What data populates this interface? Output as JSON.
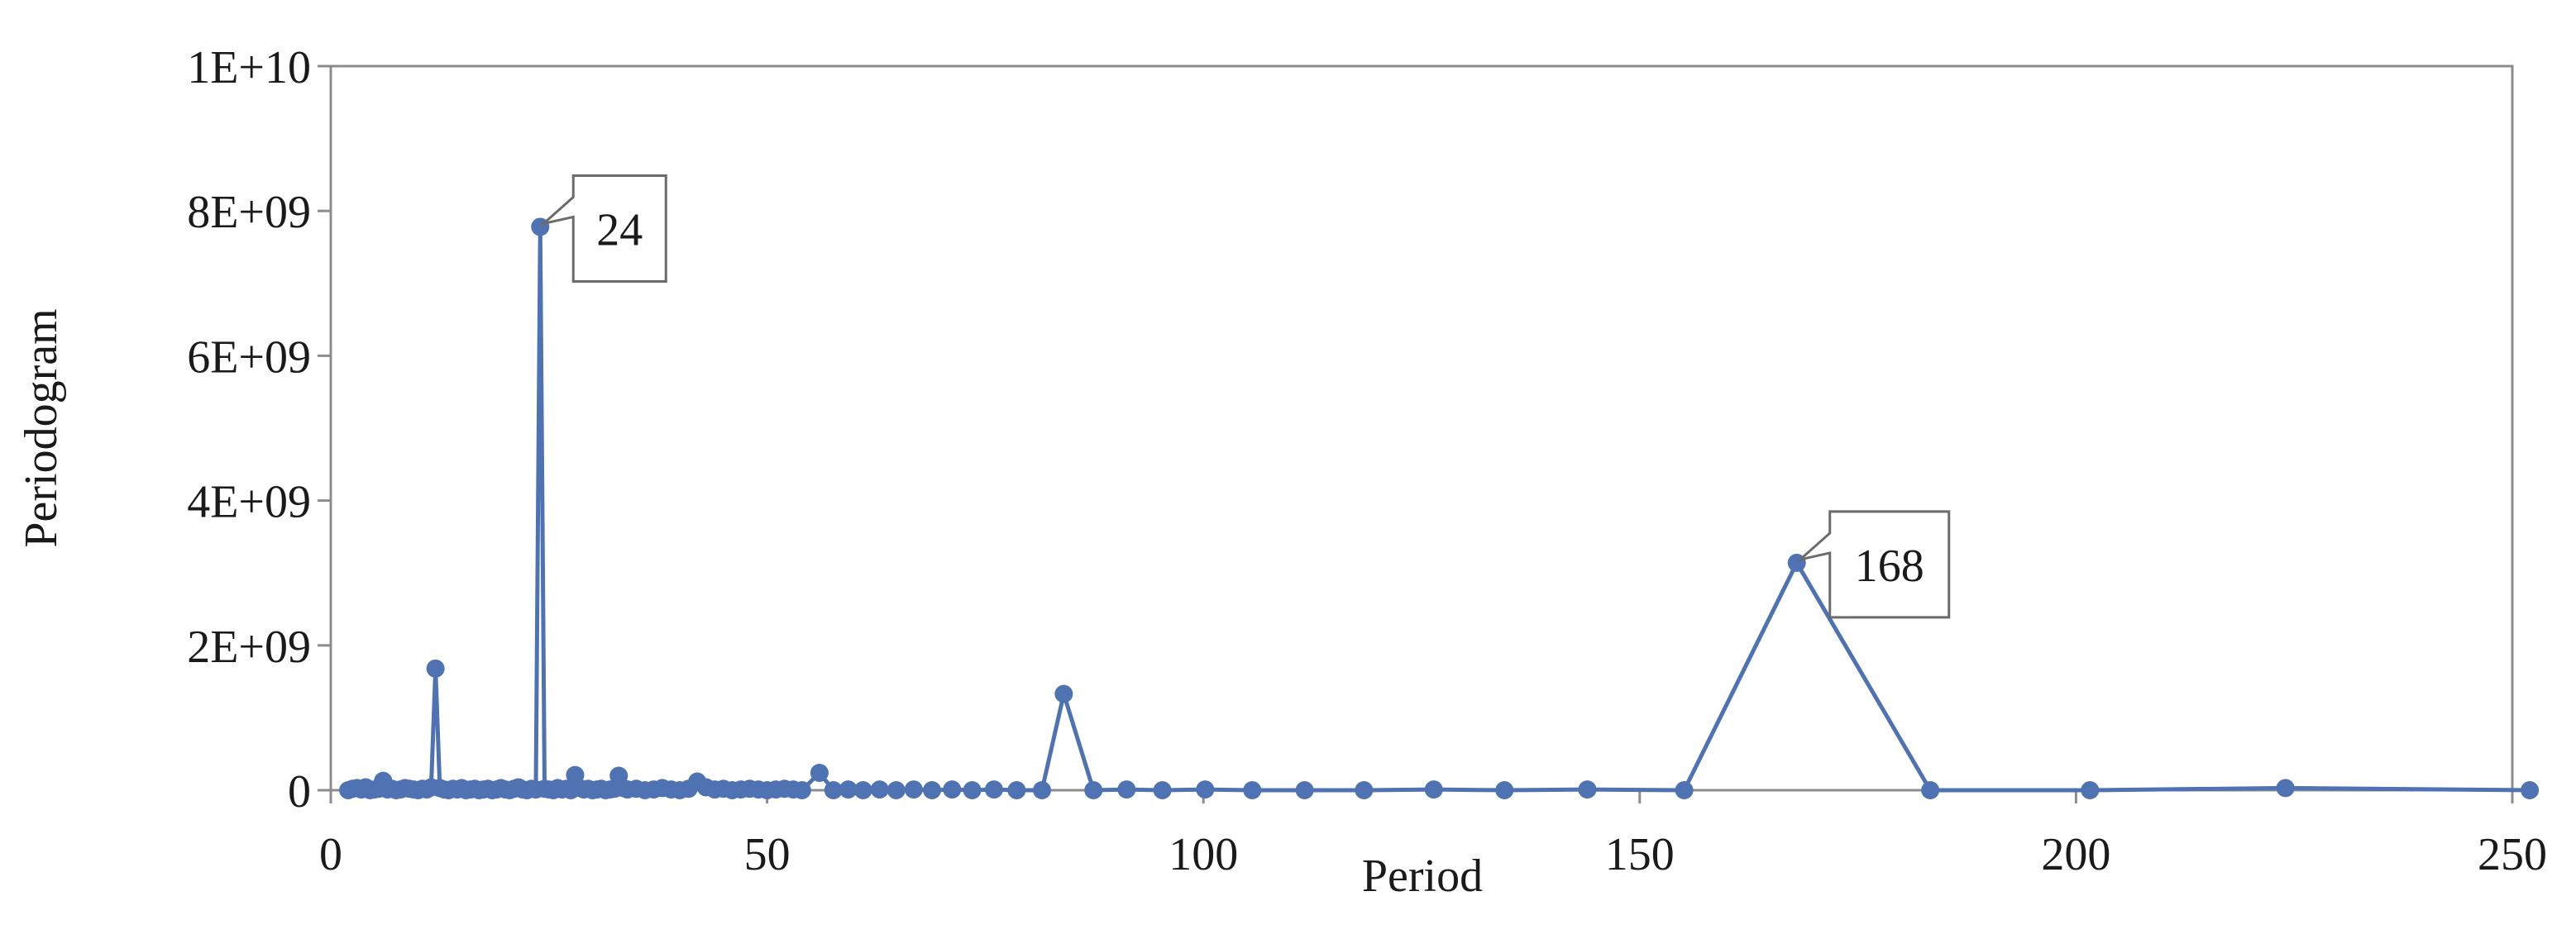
{
  "chart_data": {
    "type": "line",
    "title": "",
    "xlabel": "Period",
    "ylabel": "Periodogram",
    "xlim": [
      0,
      250
    ],
    "ylim": [
      0,
      10000000000
    ],
    "x_ticks": [
      0,
      50,
      100,
      150,
      200,
      250
    ],
    "y_ticks": [
      0,
      2000000000,
      4000000000,
      6000000000,
      8000000000,
      10000000000
    ],
    "x_tick_labels": [
      "0",
      "50",
      "100",
      "150",
      "200",
      "250"
    ],
    "y_tick_labels": [
      "0",
      "2E+09",
      "4E+09",
      "6E+09",
      "8E+09",
      "1E+10"
    ],
    "grid": false,
    "series_color": "#4f72b3",
    "series": [
      {
        "x": [
          2,
          2.5,
          3,
          3.5,
          4,
          4.5,
          5,
          5.5,
          6,
          6.5,
          7,
          7.5,
          8,
          8.5,
          9,
          9.5,
          10,
          10.5,
          11,
          11.5,
          12,
          12.5,
          13,
          13.5,
          14,
          14.5,
          15,
          15.5,
          16,
          16.5,
          17,
          17.5,
          18,
          18.5,
          19,
          19.5,
          20,
          20.5,
          21,
          21.5,
          22,
          22.5,
          23,
          23.5,
          24,
          24.5,
          25,
          25.5,
          26,
          26.5,
          27,
          27.5,
          28,
          28.5,
          29,
          29.5,
          30,
          30.5,
          31,
          31.5,
          32,
          32.5,
          33,
          33.5,
          34,
          35,
          36,
          37,
          38,
          39,
          40,
          41,
          42,
          43,
          44,
          45,
          46,
          47,
          48,
          49,
          50,
          51,
          52,
          53,
          54,
          56,
          57.6,
          59.3,
          61,
          62.9,
          64.8,
          66.8,
          68.9,
          71.2,
          73.5,
          76,
          78.6,
          81.5,
          84,
          87.4,
          91.2,
          95.3,
          100.2,
          105.6,
          111.6,
          118.4,
          126.4,
          134.5,
          144,
          155.1,
          168,
          183.3,
          201.6,
          224,
          252
        ],
        "values": [
          0,
          20000000,
          30000000,
          10000000,
          40000000,
          0,
          10000000,
          20000000,
          130000000,
          10000000,
          20000000,
          0,
          10000000,
          30000000,
          20000000,
          10000000,
          0,
          20000000,
          10000000,
          40000000,
          1680000000,
          30000000,
          10000000,
          0,
          20000000,
          10000000,
          30000000,
          0,
          10000000,
          20000000,
          0,
          10000000,
          20000000,
          0,
          10000000,
          30000000,
          10000000,
          0,
          20000000,
          40000000,
          10000000,
          0,
          20000000,
          10000000,
          7780000000,
          20000000,
          10000000,
          0,
          30000000,
          10000000,
          20000000,
          0,
          210000000,
          30000000,
          10000000,
          20000000,
          0,
          10000000,
          20000000,
          0,
          10000000,
          20000000,
          200000000,
          30000000,
          10000000,
          20000000,
          0,
          10000000,
          30000000,
          10000000,
          0,
          20000000,
          120000000,
          40000000,
          10000000,
          20000000,
          0,
          10000000,
          20000000,
          10000000,
          0,
          10000000,
          20000000,
          10000000,
          0,
          240000000,
          0,
          10000000,
          0,
          10000000,
          0,
          10000000,
          0,
          10000000,
          0,
          10000000,
          0,
          0,
          1330000000,
          0,
          10000000,
          0,
          10000000,
          0,
          0,
          0,
          10000000,
          0,
          10000000,
          0,
          3140000000,
          0,
          0,
          30000000,
          0
        ]
      }
    ],
    "annotations": [
      {
        "x": 24,
        "y": 7780000000,
        "label": "24"
      },
      {
        "x": 168,
        "y": 3140000000,
        "label": "168"
      }
    ]
  }
}
